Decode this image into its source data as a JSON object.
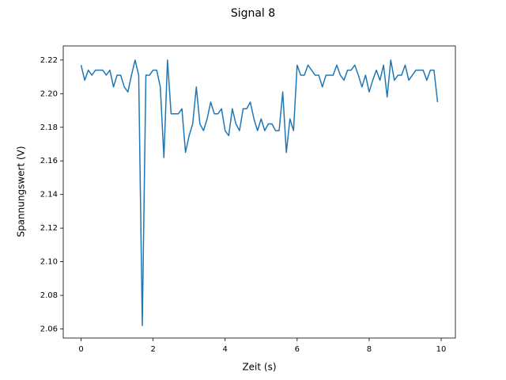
{
  "chart_data": {
    "type": "line",
    "title": "Signal 8",
    "xlabel": "Zeit (s)",
    "ylabel": "Spannungswert (V)",
    "x": [
      0,
      0.1,
      0.2,
      0.3,
      0.4,
      0.5,
      0.6,
      0.7,
      0.8,
      0.9,
      1.0,
      1.1,
      1.2,
      1.3,
      1.4,
      1.5,
      1.6,
      1.7,
      1.8,
      1.9,
      2.0,
      2.1,
      2.2,
      2.3,
      2.4,
      2.5,
      2.6,
      2.7,
      2.8,
      2.9,
      3.0,
      3.1,
      3.2,
      3.3,
      3.4,
      3.5,
      3.6,
      3.7,
      3.8,
      3.9,
      4.0,
      4.1,
      4.2,
      4.3,
      4.4,
      4.5,
      4.6,
      4.7,
      4.8,
      4.9,
      5.0,
      5.1,
      5.2,
      5.3,
      5.4,
      5.5,
      5.6,
      5.7,
      5.8,
      5.9,
      6.0,
      6.1,
      6.2,
      6.3,
      6.4,
      6.5,
      6.6,
      6.7,
      6.8,
      6.9,
      7.0,
      7.1,
      7.2,
      7.3,
      7.4,
      7.5,
      7.6,
      7.7,
      7.8,
      7.9,
      8.0,
      8.1,
      8.2,
      8.3,
      8.4,
      8.5,
      8.6,
      8.7,
      8.8,
      8.9,
      9.0,
      9.1,
      9.2,
      9.3,
      9.4,
      9.5,
      9.6,
      9.7,
      9.8,
      9.9
    ],
    "series": [
      {
        "color": "#1f77b4",
        "values": [
          2.217,
          2.208,
          2.214,
          2.211,
          2.214,
          2.214,
          2.214,
          2.211,
          2.214,
          2.204,
          2.211,
          2.211,
          2.204,
          2.201,
          2.211,
          2.22,
          2.211,
          2.062,
          2.211,
          2.211,
          2.214,
          2.214,
          2.204,
          2.162,
          2.22,
          2.188,
          2.188,
          2.188,
          2.191,
          2.165,
          2.175,
          2.182,
          2.204,
          2.182,
          2.178,
          2.185,
          2.195,
          2.188,
          2.188,
          2.191,
          2.178,
          2.175,
          2.191,
          2.182,
          2.178,
          2.191,
          2.191,
          2.195,
          2.185,
          2.178,
          2.185,
          2.178,
          2.182,
          2.182,
          2.178,
          2.178,
          2.201,
          2.165,
          2.185,
          2.178,
          2.217,
          2.211,
          2.211,
          2.217,
          2.214,
          2.211,
          2.211,
          2.204,
          2.211,
          2.211,
          2.211,
          2.217,
          2.211,
          2.208,
          2.214,
          2.214,
          2.217,
          2.211,
          2.204,
          2.211,
          2.201,
          2.208,
          2.214,
          2.208,
          2.217,
          2.198,
          2.22,
          2.208,
          2.211,
          2.211,
          2.217,
          2.208,
          2.211,
          2.214,
          2.214,
          2.214,
          2.208,
          2.214,
          2.214,
          2.195
        ]
      }
    ],
    "xlim": [
      -0.495,
      10.395
    ],
    "xticks": [
      0,
      2,
      4,
      6,
      8,
      10
    ],
    "ylim": [
      2.0546,
      2.2284
    ],
    "yticks": [
      {
        "value": 2.06,
        "label": "2.06"
      },
      {
        "value": 2.08,
        "label": "2.08"
      },
      {
        "value": 2.1,
        "label": "2.10"
      },
      {
        "value": 2.12,
        "label": "2.12"
      },
      {
        "value": 2.14,
        "label": "2.14"
      },
      {
        "value": 2.16,
        "label": "2.16"
      },
      {
        "value": 2.18,
        "label": "2.18"
      },
      {
        "value": 2.2,
        "label": "2.20"
      },
      {
        "value": 2.22,
        "label": "2.22"
      }
    ]
  }
}
